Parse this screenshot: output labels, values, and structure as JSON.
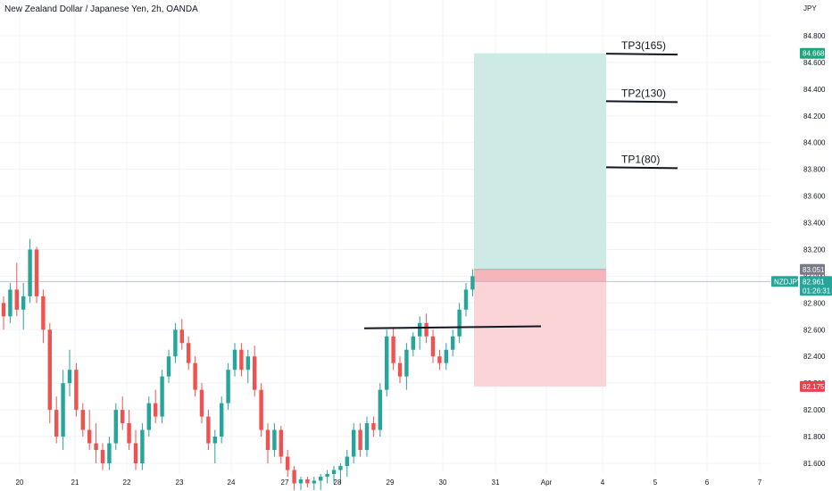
{
  "header": {
    "title": "New Zealand Dollar / Japanese Yen, 2h, OANDA"
  },
  "chart_data": {
    "type": "candlestick",
    "title": "New Zealand Dollar / Japanese Yen, 2h, OANDA",
    "currency": "JPY",
    "ylim": [
      81.53,
      84.95
    ],
    "price_ticks": [
      "81.600",
      "81.800",
      "82.000",
      "82.200",
      "82.400",
      "82.600",
      "82.800",
      "83.000",
      "83.200",
      "83.400",
      "83.600",
      "83.800",
      "84.000",
      "84.200",
      "84.400",
      "84.600",
      "84.800"
    ],
    "time_ticks": [
      "20",
      "21",
      "22",
      "23",
      "24",
      "27",
      "28",
      "29",
      "30",
      "31",
      "Apr",
      "4",
      "5",
      "6",
      "7"
    ],
    "candles": [
      [
        82.8,
        82.85,
        82.6,
        82.7
      ],
      [
        82.7,
        82.95,
        82.65,
        82.9
      ],
      [
        82.9,
        83.1,
        82.7,
        82.75
      ],
      [
        82.75,
        82.95,
        82.6,
        82.85
      ],
      [
        82.85,
        83.28,
        82.8,
        83.2
      ],
      [
        83.2,
        83.22,
        82.8,
        82.85
      ],
      [
        82.85,
        82.9,
        82.5,
        82.6
      ],
      [
        82.6,
        82.65,
        81.9,
        82.0
      ],
      [
        82.0,
        82.1,
        81.75,
        81.8
      ],
      [
        81.8,
        82.3,
        81.7,
        82.2
      ],
      [
        82.2,
        82.45,
        82.1,
        82.3
      ],
      [
        82.3,
        82.35,
        81.95,
        82.0
      ],
      [
        82.0,
        82.05,
        81.8,
        81.85
      ],
      [
        81.85,
        82.0,
        81.7,
        81.75
      ],
      [
        81.75,
        81.9,
        81.6,
        81.7
      ],
      [
        81.7,
        81.75,
        81.55,
        81.6
      ],
      [
        81.6,
        81.8,
        81.55,
        81.75
      ],
      [
        81.75,
        82.05,
        81.7,
        82.0
      ],
      [
        82.0,
        82.1,
        81.85,
        81.9
      ],
      [
        81.9,
        82.0,
        81.7,
        81.75
      ],
      [
        81.75,
        81.85,
        81.55,
        81.6
      ],
      [
        81.6,
        81.9,
        81.55,
        81.85
      ],
      [
        81.85,
        82.1,
        81.8,
        82.05
      ],
      [
        82.05,
        82.15,
        81.9,
        81.95
      ],
      [
        81.95,
        82.3,
        81.9,
        82.25
      ],
      [
        82.25,
        82.45,
        82.2,
        82.4
      ],
      [
        82.4,
        82.65,
        82.35,
        82.6
      ],
      [
        82.6,
        82.68,
        82.45,
        82.5
      ],
      [
        82.5,
        82.55,
        82.3,
        82.35
      ],
      [
        82.35,
        82.4,
        82.1,
        82.15
      ],
      [
        82.15,
        82.2,
        81.9,
        81.95
      ],
      [
        81.95,
        82.0,
        81.7,
        81.75
      ],
      [
        81.75,
        81.85,
        81.6,
        81.8
      ],
      [
        81.8,
        82.1,
        81.75,
        82.05
      ],
      [
        82.05,
        82.35,
        82.0,
        82.3
      ],
      [
        82.3,
        82.5,
        82.25,
        82.45
      ],
      [
        82.45,
        82.5,
        82.25,
        82.3
      ],
      [
        82.3,
        82.45,
        82.2,
        82.4
      ],
      [
        82.4,
        82.48,
        82.1,
        82.15
      ],
      [
        82.15,
        82.2,
        81.8,
        81.85
      ],
      [
        81.85,
        81.9,
        81.6,
        81.7
      ],
      [
        81.7,
        81.9,
        81.65,
        81.85
      ],
      [
        81.85,
        81.88,
        81.6,
        81.65
      ],
      [
        81.65,
        81.7,
        81.5,
        81.55
      ],
      [
        81.55,
        81.58,
        81.4,
        81.45
      ],
      [
        81.45,
        81.5,
        81.4,
        81.48
      ],
      [
        81.48,
        81.5,
        81.42,
        81.45
      ],
      [
        81.45,
        81.5,
        81.4,
        81.47
      ],
      [
        81.47,
        81.52,
        81.4,
        81.5
      ],
      [
        81.5,
        81.55,
        81.45,
        81.52
      ],
      [
        81.52,
        81.58,
        81.45,
        81.55
      ],
      [
        81.55,
        81.6,
        81.45,
        81.58
      ],
      [
        81.58,
        81.7,
        81.5,
        81.65
      ],
      [
        81.65,
        81.9,
        81.6,
        81.85
      ],
      [
        81.85,
        81.9,
        81.65,
        81.7
      ],
      [
        81.7,
        81.95,
        81.65,
        81.9
      ],
      [
        81.9,
        81.95,
        81.8,
        81.85
      ],
      [
        81.85,
        82.2,
        81.8,
        82.15
      ],
      [
        82.15,
        82.6,
        82.1,
        82.55
      ],
      [
        82.55,
        82.62,
        82.3,
        82.35
      ],
      [
        82.35,
        82.4,
        82.2,
        82.25
      ],
      [
        82.25,
        82.5,
        82.15,
        82.45
      ],
      [
        82.45,
        82.58,
        82.4,
        82.55
      ],
      [
        82.55,
        82.7,
        82.45,
        82.65
      ],
      [
        82.65,
        82.72,
        82.5,
        82.55
      ],
      [
        82.55,
        82.6,
        82.35,
        82.4
      ],
      [
        82.4,
        82.45,
        82.3,
        82.35
      ],
      [
        82.35,
        82.5,
        82.3,
        82.45
      ],
      [
        82.45,
        82.6,
        82.4,
        82.55
      ],
      [
        82.55,
        82.8,
        82.5,
        82.75
      ],
      [
        82.75,
        82.95,
        82.7,
        82.9
      ],
      [
        82.9,
        83.05,
        82.85,
        83.0
      ]
    ],
    "last_price": 82.961,
    "symbol_label": "NZDJPY",
    "countdown": "01:26:31",
    "take_profit_price": 84.668,
    "entry_price": 83.051,
    "stop_price": 82.175,
    "stop_label": "82.175",
    "entry_label": "83.051",
    "tp_label": "84.668",
    "last_label": "82.961",
    "support_line": {
      "from_price": 82.61,
      "to_price": 82.625
    },
    "targets": [
      {
        "label": "TP3(165)",
        "price": 84.665
      },
      {
        "label": "TP2(130)",
        "price": 84.31
      },
      {
        "label": "TP1(80)",
        "price": 83.815
      }
    ],
    "colors": {
      "up": "#26a69a",
      "down": "#ef5350",
      "profit_zone": "#cdebe4",
      "loss_zone": "#fbd4d8",
      "entry_zone": "#f5b5bb",
      "tp_tag": "#1ea57d",
      "stop_tag": "#ef3f4c",
      "entry_tag": "#787b86",
      "grid": "#f0f3fa"
    }
  }
}
